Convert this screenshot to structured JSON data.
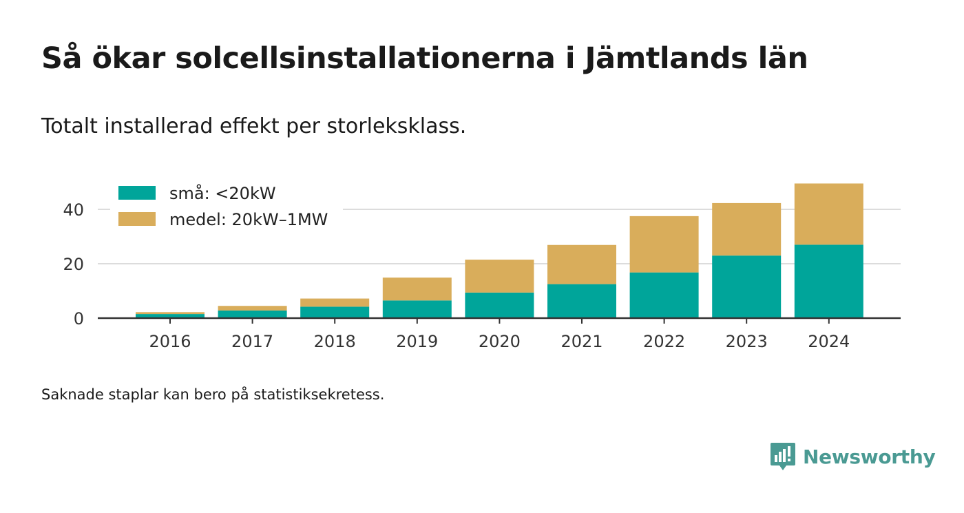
{
  "title": "Så ökar solcellsinstallationerna i Jämtlands län",
  "subtitle": "Totalt installerad effekt per storleksklass.",
  "footnote": "Saknade staplar kan bero på statistiksekretess.",
  "brand": {
    "name": "Newsworthy",
    "icon": "newsworthy-logo-icon",
    "color": "#4a9a93"
  },
  "chart_data": {
    "type": "bar",
    "stacked": true,
    "categories": [
      "2016",
      "2017",
      "2018",
      "2019",
      "2020",
      "2021",
      "2022",
      "2023",
      "2024"
    ],
    "series": [
      {
        "name": "små: <20kW",
        "color": "#00a59a",
        "values": [
          1.5,
          2.8,
          4.2,
          6.5,
          9.4,
          12.5,
          16.8,
          23.0,
          27.0
        ]
      },
      {
        "name": "medel: 20kW–1MW",
        "color": "#d9ad5b",
        "values": [
          0.7,
          1.7,
          3.0,
          8.4,
          12.1,
          14.4,
          20.7,
          19.3,
          22.5
        ]
      }
    ],
    "yticks": [
      0,
      20,
      40
    ],
    "ylim": [
      0,
      50
    ],
    "grid": true,
    "legend_position": "top-left"
  }
}
